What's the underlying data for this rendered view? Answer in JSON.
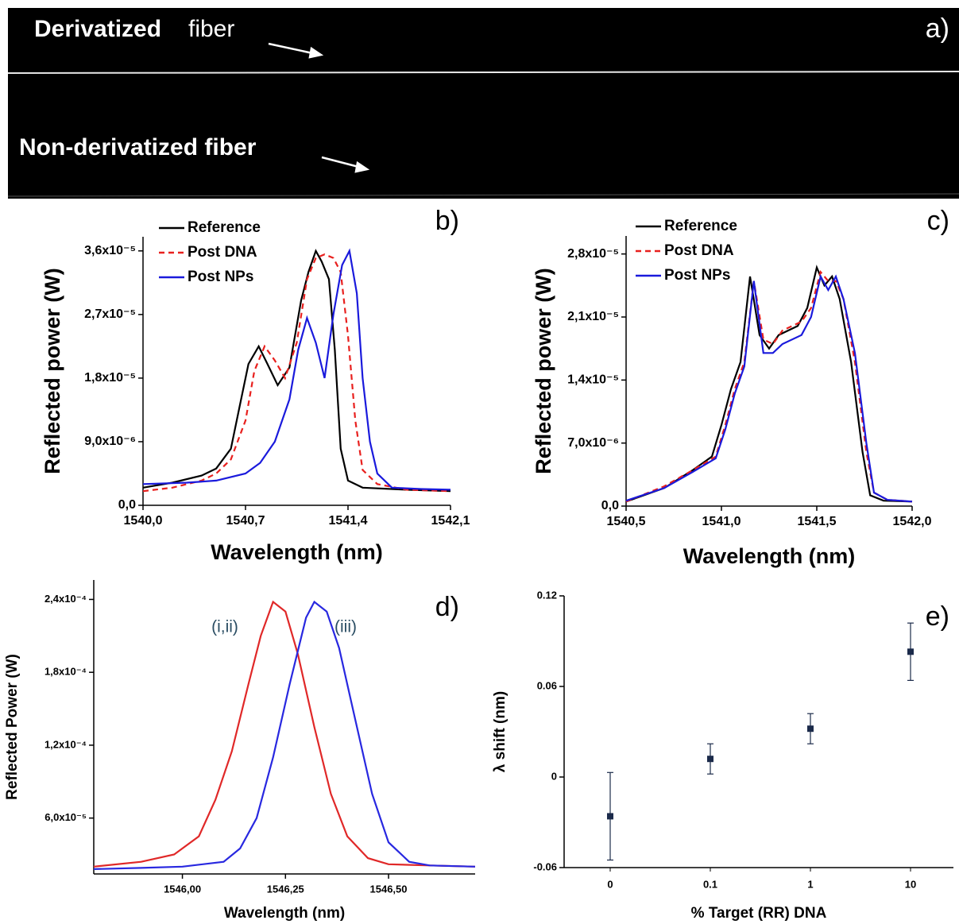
{
  "panel_a": {
    "label": "a)",
    "derivatized": "Derivatized",
    "fiber": "fiber",
    "non_derivatized": "Non-derivatized fiber"
  },
  "chart_data": [
    {
      "type": "line",
      "panel_label": "b)",
      "xlabel": "Wavelength (nm)",
      "ylabel": "Reflected power (W)",
      "legend": "upper left",
      "xlim": [
        1540.0,
        1542.1
      ],
      "ylim": [
        0,
        3.8e-05
      ],
      "xticks": [
        {
          "value": 1540.0,
          "label": "1540,0"
        },
        {
          "value": 1540.7,
          "label": "1540,7"
        },
        {
          "value": 1541.4,
          "label": "1541,4"
        },
        {
          "value": 1542.1,
          "label": "1542,1"
        }
      ],
      "yticks": [
        {
          "value": 0,
          "label": "0,0"
        },
        {
          "value": 9e-06,
          "label": "9,0x10⁻⁶"
        },
        {
          "value": 1.8e-05,
          "label": "1,8x10⁻⁵"
        },
        {
          "value": 2.7e-05,
          "label": "2,7x10⁻⁵"
        },
        {
          "value": 3.6e-05,
          "label": "3,6x10⁻⁵"
        }
      ],
      "series": [
        {
          "name": "Reference",
          "color": "#000000",
          "dash": false,
          "x": [
            1540.0,
            1540.2,
            1540.4,
            1540.5,
            1540.6,
            1540.66,
            1540.72,
            1540.79,
            1540.85,
            1540.92,
            1541.0,
            1541.08,
            1541.13,
            1541.18,
            1541.22,
            1541.27,
            1541.31,
            1541.35,
            1541.4,
            1541.5,
            1541.8,
            1542.1
          ],
          "values": [
            2.5e-06,
            3.2e-06,
            4.2e-06,
            5.2e-06,
            8e-06,
            1.4e-05,
            2e-05,
            2.25e-05,
            2e-05,
            1.7e-05,
            1.95e-05,
            2.9e-05,
            3.3e-05,
            3.6e-05,
            3.45e-05,
            3.2e-05,
            2.2e-05,
            8e-06,
            3.5e-06,
            2.5e-06,
            2.2e-06,
            2e-06
          ]
        },
        {
          "name": "Post DNA",
          "color": "#e8201e",
          "dash": true,
          "x": [
            1540.0,
            1540.2,
            1540.4,
            1540.5,
            1540.6,
            1540.7,
            1540.76,
            1540.83,
            1540.9,
            1540.97,
            1541.05,
            1541.12,
            1541.18,
            1541.24,
            1541.3,
            1541.35,
            1541.4,
            1541.45,
            1541.5,
            1541.6,
            1541.8,
            1542.1
          ],
          "values": [
            2e-06,
            2.5e-06,
            3.5e-06,
            4.5e-06,
            6.5e-06,
            1.2e-05,
            1.9e-05,
            2.25e-05,
            2.05e-05,
            1.8e-05,
            2.3e-05,
            3.2e-05,
            3.5e-05,
            3.55e-05,
            3.5e-05,
            3.3e-05,
            2.4e-05,
            1.2e-05,
            5e-06,
            3e-06,
            2.2e-06,
            2e-06
          ]
        },
        {
          "name": "Post NPs",
          "color": "#1a1adc",
          "dash": false,
          "x": [
            1540.0,
            1540.3,
            1540.5,
            1540.7,
            1540.8,
            1540.9,
            1541.0,
            1541.06,
            1541.12,
            1541.18,
            1541.24,
            1541.3,
            1541.36,
            1541.41,
            1541.46,
            1541.5,
            1541.55,
            1541.6,
            1541.7,
            1541.9,
            1542.1
          ],
          "values": [
            3e-06,
            3.2e-06,
            3.5e-06,
            4.5e-06,
            6e-06,
            9e-06,
            1.5e-05,
            2.2e-05,
            2.65e-05,
            2.3e-05,
            1.8e-05,
            2.7e-05,
            3.4e-05,
            3.6e-05,
            3e-05,
            1.8e-05,
            9e-06,
            4.5e-06,
            2.5e-06,
            2.3e-06,
            2.2e-06
          ]
        }
      ]
    },
    {
      "type": "line",
      "panel_label": "c)",
      "xlabel": "Wavelength (nm)",
      "ylabel": "Reflected power (W)",
      "legend": "upper left",
      "xlim": [
        1540.5,
        1542.0
      ],
      "ylim": [
        0,
        3e-05
      ],
      "xticks": [
        {
          "value": 1540.5,
          "label": "1540,5"
        },
        {
          "value": 1541.0,
          "label": "1541,0"
        },
        {
          "value": 1541.5,
          "label": "1541,5"
        },
        {
          "value": 1542.0,
          "label": "1542,0"
        }
      ],
      "yticks": [
        {
          "value": 0,
          "label": "0,0"
        },
        {
          "value": 7e-06,
          "label": "7,0x10⁻⁶"
        },
        {
          "value": 1.4e-05,
          "label": "1,4x10⁻⁵"
        },
        {
          "value": 2.1e-05,
          "label": "2,1x10⁻⁵"
        },
        {
          "value": 2.8e-05,
          "label": "2,8x10⁻⁵"
        }
      ],
      "series": [
        {
          "name": "Reference",
          "color": "#000000",
          "dash": false,
          "x": [
            1540.5,
            1540.7,
            1540.85,
            1540.95,
            1541.0,
            1541.05,
            1541.1,
            1541.15,
            1541.2,
            1541.25,
            1541.3,
            1541.4,
            1541.45,
            1541.5,
            1541.54,
            1541.58,
            1541.62,
            1541.68,
            1541.74,
            1541.78,
            1541.85,
            1542.0
          ],
          "values": [
            5e-07,
            2e-06,
            4e-06,
            5.5e-06,
            9e-06,
            1.3e-05,
            1.6e-05,
            2.55e-05,
            1.9e-05,
            1.75e-05,
            1.9e-05,
            2e-05,
            2.2e-05,
            2.65e-05,
            2.45e-05,
            2.55e-05,
            2.3e-05,
            1.6e-05,
            6e-06,
            1.2e-06,
            6e-07,
            5e-07
          ]
        },
        {
          "name": "Post DNA",
          "color": "#e8201e",
          "dash": true,
          "x": [
            1540.5,
            1540.7,
            1540.85,
            1540.97,
            1541.02,
            1541.07,
            1541.12,
            1541.17,
            1541.22,
            1541.27,
            1541.32,
            1541.42,
            1541.47,
            1541.52,
            1541.56,
            1541.6,
            1541.64,
            1541.7,
            1541.76,
            1541.8,
            1541.87,
            1542.0
          ],
          "values": [
            5e-07,
            2.2e-06,
            4e-06,
            5.5e-06,
            9e-06,
            1.3e-05,
            1.6e-05,
            2.5e-05,
            1.85e-05,
            1.8e-05,
            1.95e-05,
            2.05e-05,
            2.2e-05,
            2.6e-05,
            2.5e-05,
            2.5e-05,
            2.3e-05,
            1.6e-05,
            6e-06,
            1.5e-06,
            7e-07,
            5e-07
          ]
        },
        {
          "name": "Post NPs",
          "color": "#1a1adc",
          "dash": false,
          "x": [
            1540.5,
            1540.7,
            1540.85,
            1540.97,
            1541.02,
            1541.07,
            1541.12,
            1541.17,
            1541.22,
            1541.27,
            1541.32,
            1541.42,
            1541.47,
            1541.52,
            1541.56,
            1541.6,
            1541.64,
            1541.7,
            1541.76,
            1541.8,
            1541.87,
            1542.0
          ],
          "values": [
            6e-07,
            2e-06,
            3.8e-06,
            5.3e-06,
            8.5e-06,
            1.25e-05,
            1.55e-05,
            2.5e-05,
            1.7e-05,
            1.7e-05,
            1.8e-05,
            1.9e-05,
            2.1e-05,
            2.55e-05,
            2.4e-05,
            2.55e-05,
            2.3e-05,
            1.7e-05,
            7e-06,
            1.5e-06,
            7e-07,
            5e-07
          ]
        }
      ]
    },
    {
      "type": "line",
      "panel_label": "d)",
      "xlabel": "Wavelength (nm)",
      "ylabel": "Reflected Power (W)",
      "xlim": [
        1545.785,
        1546.71
      ],
      "ylim": [
        1.4e-05,
        0.000256
      ],
      "xticks": [
        {
          "value": 1546.0,
          "label": "1546,00"
        },
        {
          "value": 1546.25,
          "label": "1546,25"
        },
        {
          "value": 1546.5,
          "label": "1546,50"
        }
      ],
      "yticks": [
        {
          "value": 6e-05,
          "label": "6,0x10⁻⁵"
        },
        {
          "value": 0.00012,
          "label": "1,2x10⁻⁴"
        },
        {
          "value": 0.00018,
          "label": "1,8x10⁻⁴"
        },
        {
          "value": 0.00024,
          "label": "2,4x10⁻⁴"
        }
      ],
      "series": [
        {
          "name": "(i,ii)",
          "color": "#e02828",
          "dash": false,
          "x": [
            1545.785,
            1545.9,
            1545.98,
            1546.04,
            1546.08,
            1546.12,
            1546.16,
            1546.19,
            1546.22,
            1546.25,
            1546.28,
            1546.32,
            1546.36,
            1546.4,
            1546.45,
            1546.5,
            1546.6,
            1546.71
          ],
          "values": [
            2e-05,
            2.4e-05,
            3e-05,
            4.5e-05,
            7.5e-05,
            0.000115,
            0.00017,
            0.00021,
            0.000238,
            0.00023,
            0.000195,
            0.000135,
            8e-05,
            4.5e-05,
            2.7e-05,
            2.2e-05,
            2.1e-05,
            2e-05
          ]
        },
        {
          "name": "(iii)",
          "color": "#2828e0",
          "dash": false,
          "x": [
            1545.785,
            1545.9,
            1546.0,
            1546.1,
            1546.14,
            1546.18,
            1546.22,
            1546.26,
            1546.3,
            1546.32,
            1546.35,
            1546.38,
            1546.42,
            1546.46,
            1546.5,
            1546.55,
            1546.6,
            1546.71
          ],
          "values": [
            1.8e-05,
            1.9e-05,
            2e-05,
            2.4e-05,
            3.5e-05,
            6e-05,
            0.00011,
            0.00017,
            0.000225,
            0.000238,
            0.00023,
            0.0002,
            0.00014,
            8e-05,
            4e-05,
            2.4e-05,
            2.1e-05,
            2e-05
          ]
        }
      ]
    },
    {
      "type": "errorbar",
      "panel_label": "e)",
      "xlabel": "% Target (RR) DNA",
      "ylabel": "λ shift (nm)",
      "color": "#1b2a4a",
      "categories": [
        "0",
        "0.1",
        "1",
        "10"
      ],
      "values": [
        -0.026,
        0.012,
        0.032,
        0.083
      ],
      "errors": [
        0.029,
        0.01,
        0.01,
        0.019
      ],
      "ylim": [
        -0.06,
        0.12
      ],
      "yticks": [
        -0.06,
        0,
        0.06,
        0.12
      ]
    }
  ]
}
